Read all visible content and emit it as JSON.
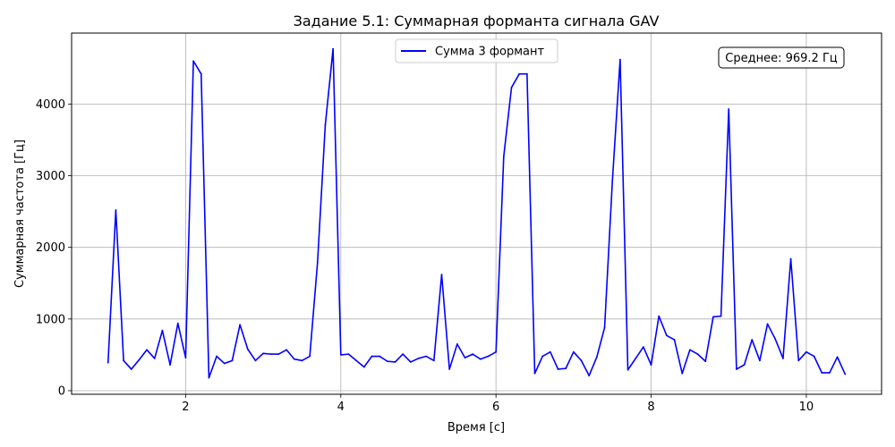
{
  "chart_data": {
    "type": "line",
    "title": "Задание 5.1: Суммарная форманта сигнала GAV",
    "xlabel": "Время [с]",
    "ylabel": "Суммарная частота [Гц]",
    "xlim": [
      0.53,
      10.97
    ],
    "ylim": [
      -50,
      4990
    ],
    "xticks": [
      2,
      4,
      6,
      8,
      10
    ],
    "yticks": [
      0,
      1000,
      2000,
      3000,
      4000
    ],
    "grid": true,
    "legend_position": "upper center",
    "annotation": "Среднее: 969.2 Гц",
    "annotation_position": "top-right",
    "series": [
      {
        "name": "Сумма 3 формант",
        "color": "#0000ff",
        "x": [
          1.0,
          1.1,
          1.2,
          1.3,
          1.4,
          1.5,
          1.6,
          1.7,
          1.8,
          1.9,
          2.0,
          2.1,
          2.2,
          2.3,
          2.4,
          2.5,
          2.6,
          2.7,
          2.8,
          2.9,
          3.0,
          3.1,
          3.2,
          3.3,
          3.4,
          3.5,
          3.6,
          3.7,
          3.8,
          3.9,
          4.0,
          4.1,
          4.2,
          4.3,
          4.4,
          4.5,
          4.6,
          4.7,
          4.8,
          4.9,
          5.0,
          5.1,
          5.2,
          5.3,
          5.4,
          5.5,
          5.6,
          5.7,
          5.8,
          5.9,
          6.0,
          6.1,
          6.2,
          6.3,
          6.4,
          6.5,
          6.6,
          6.7,
          6.8,
          6.9,
          7.0,
          7.1,
          7.2,
          7.3,
          7.4,
          7.5,
          7.6,
          7.7,
          7.8,
          7.9,
          8.0,
          8.1,
          8.2,
          8.3,
          8.4,
          8.5,
          8.6,
          8.7,
          8.8,
          8.9,
          9.0,
          9.1,
          9.2,
          9.3,
          9.4,
          9.5,
          9.6,
          9.7,
          9.8,
          9.9,
          10.0,
          10.1,
          10.2,
          10.3,
          10.4,
          10.5
        ],
        "y": [
          390,
          2520,
          420,
          300,
          430,
          570,
          450,
          840,
          360,
          940,
          460,
          4600,
          4420,
          180,
          480,
          380,
          420,
          920,
          580,
          420,
          520,
          510,
          510,
          570,
          440,
          420,
          480,
          1790,
          3710,
          4770,
          500,
          510,
          420,
          330,
          480,
          480,
          410,
          400,
          510,
          400,
          450,
          480,
          420,
          1620,
          300,
          650,
          460,
          510,
          440,
          480,
          540,
          3270,
          4230,
          4420,
          4420,
          240,
          480,
          540,
          300,
          310,
          540,
          420,
          210,
          470,
          880,
          2920,
          4620,
          290,
          450,
          610,
          360,
          1040,
          770,
          710,
          240,
          570,
          510,
          410,
          1030,
          1040,
          3930,
          300,
          360,
          710,
          420,
          930,
          720,
          450,
          1840,
          420,
          540,
          480,
          250,
          250,
          470,
          230
        ]
      }
    ]
  }
}
